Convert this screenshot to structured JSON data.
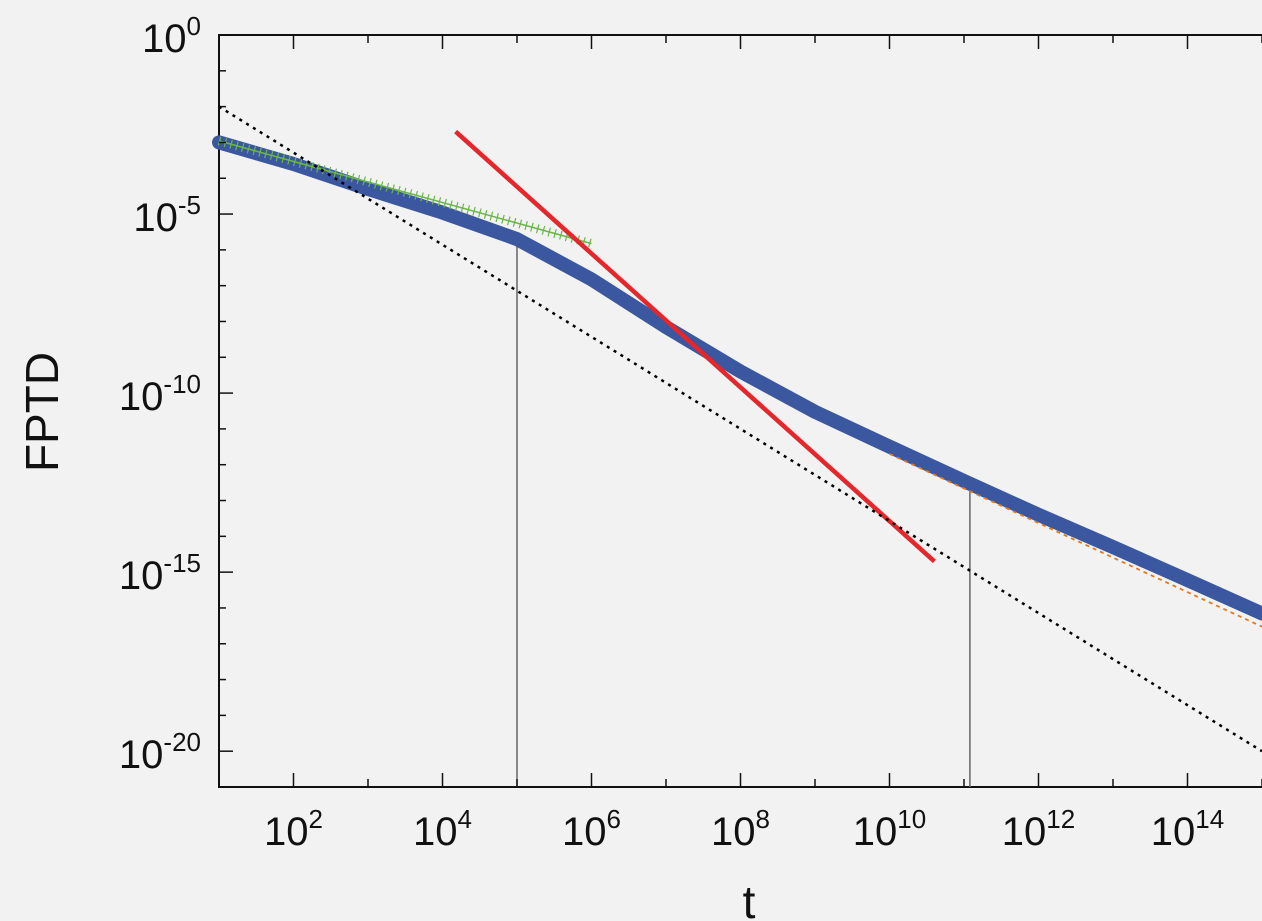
{
  "chart_data": {
    "type": "line",
    "title": "",
    "xlabel": "t",
    "ylabel": "FPTD",
    "x_scale": "log",
    "y_scale": "log",
    "xlim": [
      10,
      1000000000000000.0
    ],
    "ylim": [
      1e-21,
      1
    ],
    "x_ticks": [
      {
        "base": "10",
        "exp": "2",
        "value": 100.0
      },
      {
        "base": "10",
        "exp": "4",
        "value": 10000.0
      },
      {
        "base": "10",
        "exp": "6",
        "value": 1000000.0
      },
      {
        "base": "10",
        "exp": "8",
        "value": 100000000.0
      },
      {
        "base": "10",
        "exp": "10",
        "value": 10000000000.0
      },
      {
        "base": "10",
        "exp": "12",
        "value": 1000000000000.0
      },
      {
        "base": "10",
        "exp": "14",
        "value": 100000000000000.0
      }
    ],
    "y_ticks": [
      {
        "base": "10",
        "exp": "0",
        "value": 1
      },
      {
        "base": "10",
        "exp": "-5",
        "value": 1e-05
      },
      {
        "base": "10",
        "exp": "-10",
        "value": 1e-10
      },
      {
        "base": "10",
        "exp": "-15",
        "value": 1e-15
      },
      {
        "base": "10",
        "exp": "-20",
        "value": 1e-20
      }
    ],
    "grid": false,
    "series": [
      {
        "color": "#3a57a0",
        "style": "thick-solid",
        "points": [
          [
            10,
            0.001
          ],
          [
            100.0,
            0.00025
          ],
          [
            1000.0,
            5e-05
          ],
          [
            10000.0,
            1.1e-05
          ],
          [
            100000.0,
            2e-06
          ],
          [
            1000000.0,
            1.5e-07
          ],
          [
            10000000.0,
            7e-09
          ],
          [
            100000000.0,
            4e-10
          ],
          [
            1000000000.0,
            3e-11
          ],
          [
            10000000000.0,
            3.2e-12
          ],
          [
            100000000000.0,
            3.5e-13
          ],
          [
            1000000000000.0,
            4e-14
          ],
          [
            10000000000000.0,
            5e-15
          ],
          [
            100000000000000.0,
            6e-16
          ],
          [
            1000000000000000.0,
            7e-17
          ]
        ]
      },
      {
        "color": "#6bb64a",
        "style": "crosses",
        "points": [
          [
            10,
            0.0011
          ],
          [
            1000000.0,
            1.5e-06
          ]
        ]
      },
      {
        "color": "#e5262a",
        "style": "solid",
        "points": [
          [
            15000.0,
            0.002
          ],
          [
            40000000000.0,
            2e-15
          ]
        ]
      },
      {
        "color": "#000000",
        "style": "dotted",
        "points": [
          [
            10,
            0.01
          ],
          [
            1000000000000000.0,
            1e-20
          ]
        ]
      },
      {
        "color": "#e07a1f",
        "style": "dashed",
        "points": [
          [
            10000000000.0,
            2e-12
          ],
          [
            1000000000000000.0,
            3e-17
          ]
        ]
      }
    ],
    "vertical_markers": [
      100000.0,
      120000000000.0
    ]
  }
}
